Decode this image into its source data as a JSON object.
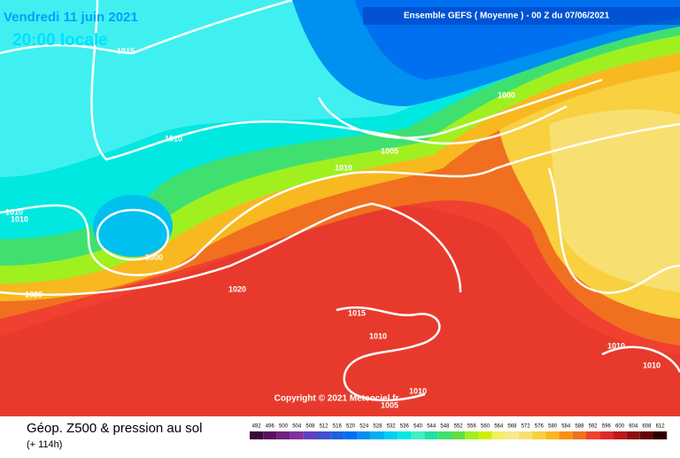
{
  "header": {
    "date": "Vendredi 11 juin 2021",
    "time": "20:00 locale",
    "model": "Ensemble GEFS  ( Moyenne )  -  00 Z du 07/06/2021"
  },
  "isobar_labels": [
    "1015",
    "1010",
    "1005",
    "1010",
    "1000",
    "1010",
    "1010",
    "1000",
    "1020",
    "1020",
    "1015",
    "1010",
    "1010",
    "1005",
    "1010",
    "1010"
  ],
  "copyright": "Copyright © 2021 Meteociel.fr",
  "footer": {
    "title": "Géop. Z500 & pression au sol",
    "lead": "(+ 114h)"
  },
  "legend": {
    "values": [
      492,
      496,
      500,
      504,
      508,
      512,
      516,
      520,
      524,
      528,
      532,
      536,
      540,
      544,
      548,
      552,
      556,
      560,
      564,
      568,
      572,
      576,
      580,
      584,
      588,
      592,
      596,
      600,
      604,
      608,
      612
    ],
    "colors": [
      "#3a0a3a",
      "#5a1060",
      "#702080",
      "#8030a0",
      "#6040c0",
      "#4050d0",
      "#2060e0",
      "#0070f0",
      "#0090f0",
      "#00b0f0",
      "#00d0f0",
      "#00e8e0",
      "#40f0c0",
      "#20e0a0",
      "#40e070",
      "#60e040",
      "#a0f020",
      "#d0f000",
      "#f0f060",
      "#f8e890",
      "#f8e070",
      "#f8d040",
      "#f8b820",
      "#f89010",
      "#f07020",
      "#f04030",
      "#e02828",
      "#c01818",
      "#901010",
      "#600808",
      "#300000"
    ]
  }
}
